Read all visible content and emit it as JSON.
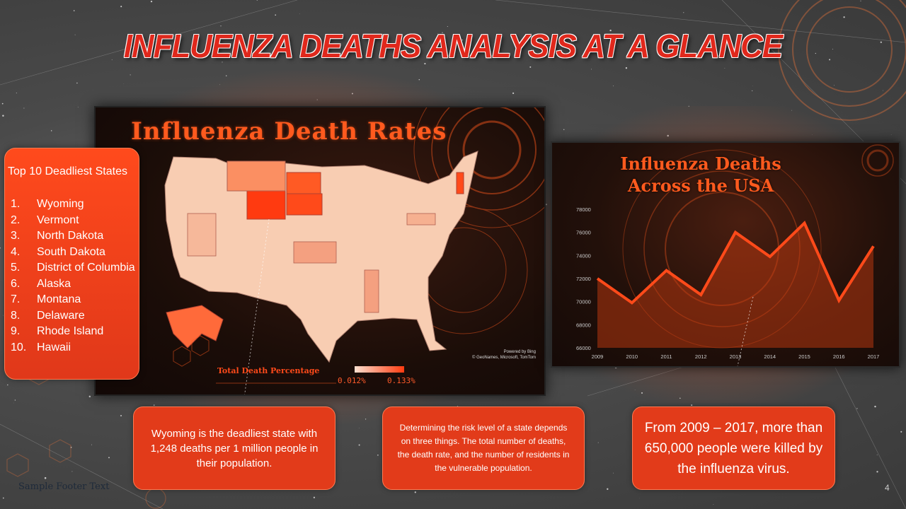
{
  "slide": {
    "title": "INFLUENZA DEATHS ANALYSIS  AT A GLANCE",
    "footer": "Sample Footer Text",
    "page_number": "4"
  },
  "map_panel": {
    "title": "Influenza Death Rates",
    "credit_line1": "Powered by Bing",
    "credit_line2": "© GeoNames, Microsoft, TomTom",
    "legend_title": "Total Death Percentage",
    "legend_min": "0.012%",
    "legend_max": "0.133%",
    "legend_color_low": "#fde0cf",
    "legend_color_high": "#ff3b10"
  },
  "top10": {
    "title": "Top 10 Deadliest States",
    "items": [
      {
        "num": "1.",
        "name": "Wyoming"
      },
      {
        "num": "2.",
        "name": "Vermont"
      },
      {
        "num": "3.",
        "name": "North Dakota"
      },
      {
        "num": "4.",
        "name": "South Dakota"
      },
      {
        "num": "5.",
        "name": "District of Columbia"
      },
      {
        "num": "6.",
        "name": "Alaska"
      },
      {
        "num": "7.",
        "name": "Montana"
      },
      {
        "num": "8.",
        "name": "Delaware"
      },
      {
        "num": "9.",
        "name": "Rhode Island"
      },
      {
        "num": "10.",
        "name": "Hawaii"
      }
    ]
  },
  "textboxes": {
    "box1": "Wyoming is the deadliest state with 1,248 deaths per 1 million people in their population.",
    "box2": "Determining the risk level of a state depends on three things. The total number of deaths, the death rate, and the number of residents in the vulnerable population.",
    "box3": "From 2009 – 2017, more than 650,000 people were killed by the influenza virus."
  },
  "chart_panel": {
    "title_line1": "Influenza Deaths",
    "title_line2": "Across the USA"
  },
  "chart_data": {
    "type": "area",
    "title": "Influenza Deaths Across the USA",
    "xlabel": "",
    "ylabel": "",
    "categories": [
      "2009",
      "2010",
      "2011",
      "2012",
      "2013",
      "2014",
      "2015",
      "2016",
      "2017"
    ],
    "values": [
      72000,
      69900,
      72700,
      70600,
      76000,
      73900,
      76800,
      70100,
      74800
    ],
    "ylim": [
      66000,
      78000
    ],
    "yticks": [
      "66000",
      "68000",
      "70000",
      "72000",
      "74000",
      "76000",
      "78000"
    ],
    "line_color": "#ff4a1a",
    "fill_color": "#c23a10",
    "grid": false
  }
}
